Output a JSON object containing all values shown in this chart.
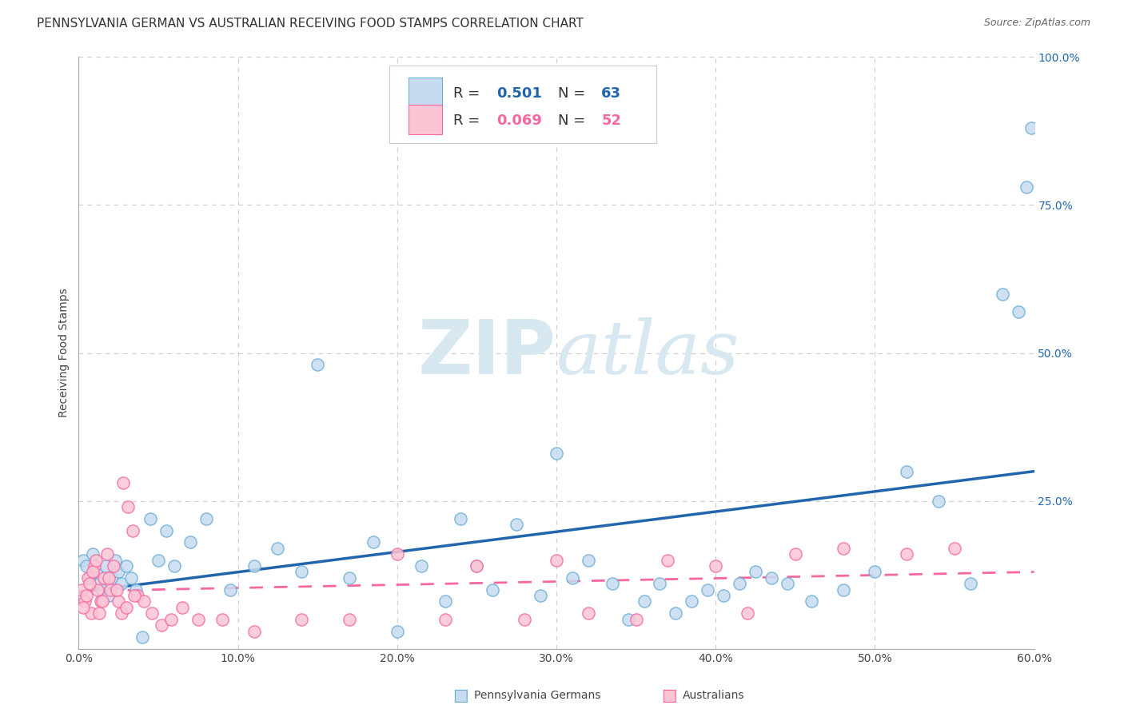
{
  "title": "PENNSYLVANIA GERMAN VS AUSTRALIAN RECEIVING FOOD STAMPS CORRELATION CHART",
  "source": "Source: ZipAtlas.com",
  "ylabel": "Receiving Food Stamps",
  "blue_color_face": "#c6dbef",
  "blue_color_edge": "#6baed6",
  "pink_color_face": "#fcc5d4",
  "pink_color_edge": "#f768a1",
  "blue_line_color": "#2166ac",
  "pink_line_color": "#f768a1",
  "legend_blue_r": "0.501",
  "legend_blue_n": "63",
  "legend_pink_r": "0.069",
  "legend_pink_n": "52",
  "blue_scatter_x": [
    0.3,
    0.5,
    0.7,
    0.9,
    1.1,
    1.3,
    1.5,
    1.7,
    1.9,
    2.1,
    2.3,
    2.5,
    2.7,
    3.0,
    3.3,
    3.6,
    4.0,
    4.5,
    5.0,
    5.5,
    6.0,
    7.0,
    8.0,
    9.5,
    11.0,
    12.5,
    14.0,
    15.0,
    17.0,
    18.5,
    20.0,
    21.5,
    23.0,
    24.0,
    25.0,
    26.0,
    27.5,
    29.0,
    30.0,
    31.0,
    32.0,
    33.5,
    34.5,
    35.5,
    36.5,
    37.5,
    38.5,
    39.5,
    40.5,
    41.5,
    42.5,
    43.5,
    44.5,
    46.0,
    48.0,
    50.0,
    52.0,
    54.0,
    56.0,
    58.0,
    59.0,
    59.5,
    59.8
  ],
  "blue_scatter_y": [
    15,
    14,
    12,
    16,
    13,
    11,
    10,
    14,
    9,
    12,
    15,
    13,
    11,
    14,
    12,
    10,
    2,
    22,
    15,
    20,
    14,
    18,
    22,
    10,
    14,
    17,
    13,
    48,
    12,
    18,
    3,
    14,
    8,
    22,
    14,
    10,
    21,
    9,
    33,
    12,
    15,
    11,
    5,
    8,
    11,
    6,
    8,
    10,
    9,
    11,
    13,
    12,
    11,
    8,
    10,
    13,
    30,
    25,
    11,
    60,
    57,
    78,
    88
  ],
  "pink_scatter_x": [
    0.2,
    0.4,
    0.6,
    0.8,
    1.0,
    1.2,
    1.4,
    1.6,
    1.8,
    2.0,
    2.2,
    2.5,
    2.8,
    3.1,
    3.4,
    3.7,
    4.1,
    4.6,
    5.2,
    5.8,
    6.5,
    7.5,
    9.0,
    11.0,
    14.0,
    17.0,
    20.0,
    23.0,
    25.0,
    28.0,
    30.0,
    32.0,
    35.0,
    37.0,
    40.0,
    42.0,
    45.0,
    48.0,
    52.0,
    55.0,
    0.3,
    0.5,
    0.7,
    0.9,
    1.1,
    1.3,
    1.5,
    1.9,
    2.4,
    2.7,
    3.0,
    3.5
  ],
  "pink_scatter_y": [
    10,
    8,
    12,
    6,
    14,
    10,
    8,
    12,
    16,
    10,
    14,
    8,
    28,
    24,
    20,
    9,
    8,
    6,
    4,
    5,
    7,
    5,
    5,
    3,
    5,
    5,
    16,
    5,
    14,
    5,
    15,
    6,
    5,
    15,
    14,
    6,
    16,
    17,
    16,
    17,
    7,
    9,
    11,
    13,
    15,
    6,
    8,
    12,
    10,
    6,
    7,
    9
  ],
  "xlim": [
    0,
    60
  ],
  "ylim": [
    0,
    100
  ],
  "xticks": [
    0,
    10,
    20,
    30,
    40,
    50,
    60
  ],
  "yticks": [
    0,
    25,
    50,
    75,
    100
  ],
  "xtick_labels": [
    "0.0%",
    "10.0%",
    "20.0%",
    "30.0%",
    "40.0%",
    "50.0%",
    "60.0%"
  ],
  "ytick_labels": [
    "",
    "25.0%",
    "50.0%",
    "75.0%",
    "100.0%"
  ],
  "background_color": "#ffffff",
  "grid_color": "#cccccc",
  "watermark_color": "#d8e8f0",
  "title_fontsize": 11,
  "source_fontsize": 9,
  "tick_fontsize": 10,
  "ylabel_fontsize": 10
}
